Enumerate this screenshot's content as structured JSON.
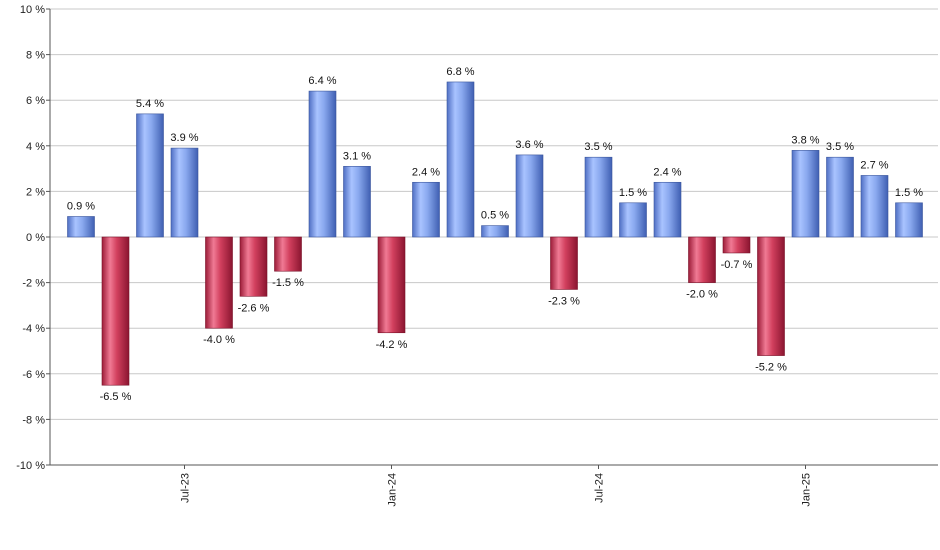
{
  "chart_data": {
    "type": "bar",
    "title": "",
    "xlabel": "",
    "ylabel": "",
    "ylim": [
      -10,
      10
    ],
    "y_ticks": [
      10,
      8,
      6,
      4,
      2,
      0,
      -2,
      -4,
      -6,
      -8,
      -10
    ],
    "y_tick_labels": [
      "10 %",
      "8 %",
      "6 %",
      "4 %",
      "2 %",
      "0 %",
      "-2 %",
      "-4 %",
      "-6 %",
      "-8 %",
      "-10 %"
    ],
    "grid": true,
    "legend": "none",
    "colors": {
      "positive": "#7e9fe6",
      "negative": "#c8304e"
    },
    "x_tick_labels": [
      {
        "label": "Jul-23",
        "bar_index": 3
      },
      {
        "label": "Jan-24",
        "bar_index": 9
      },
      {
        "label": "Jul-24",
        "bar_index": 15
      },
      {
        "label": "Jan-25",
        "bar_index": 21
      }
    ],
    "values": [
      0.9,
      -6.5,
      5.4,
      3.9,
      -4.0,
      -2.6,
      -1.5,
      6.4,
      3.1,
      -4.2,
      2.4,
      6.8,
      0.5,
      3.6,
      -2.3,
      3.5,
      1.5,
      2.4,
      -2.0,
      -0.7,
      -5.2,
      3.8,
      3.5,
      2.7,
      1.5
    ],
    "value_labels": [
      "0.9 %",
      "-6.5 %",
      "5.4 %",
      "3.9 %",
      "-4.0 %",
      "-2.6 %",
      "-1.5 %",
      "6.4 %",
      "3.1 %",
      "-4.2 %",
      "2.4 %",
      "6.8 %",
      "0.5 %",
      "3.6 %",
      "-2.3 %",
      "3.5 %",
      "1.5 %",
      "2.4 %",
      "-2.0 %",
      "-0.7 %",
      "-5.2 %",
      "3.8 %",
      "3.5 %",
      "2.7 %",
      "1.5 %"
    ]
  }
}
